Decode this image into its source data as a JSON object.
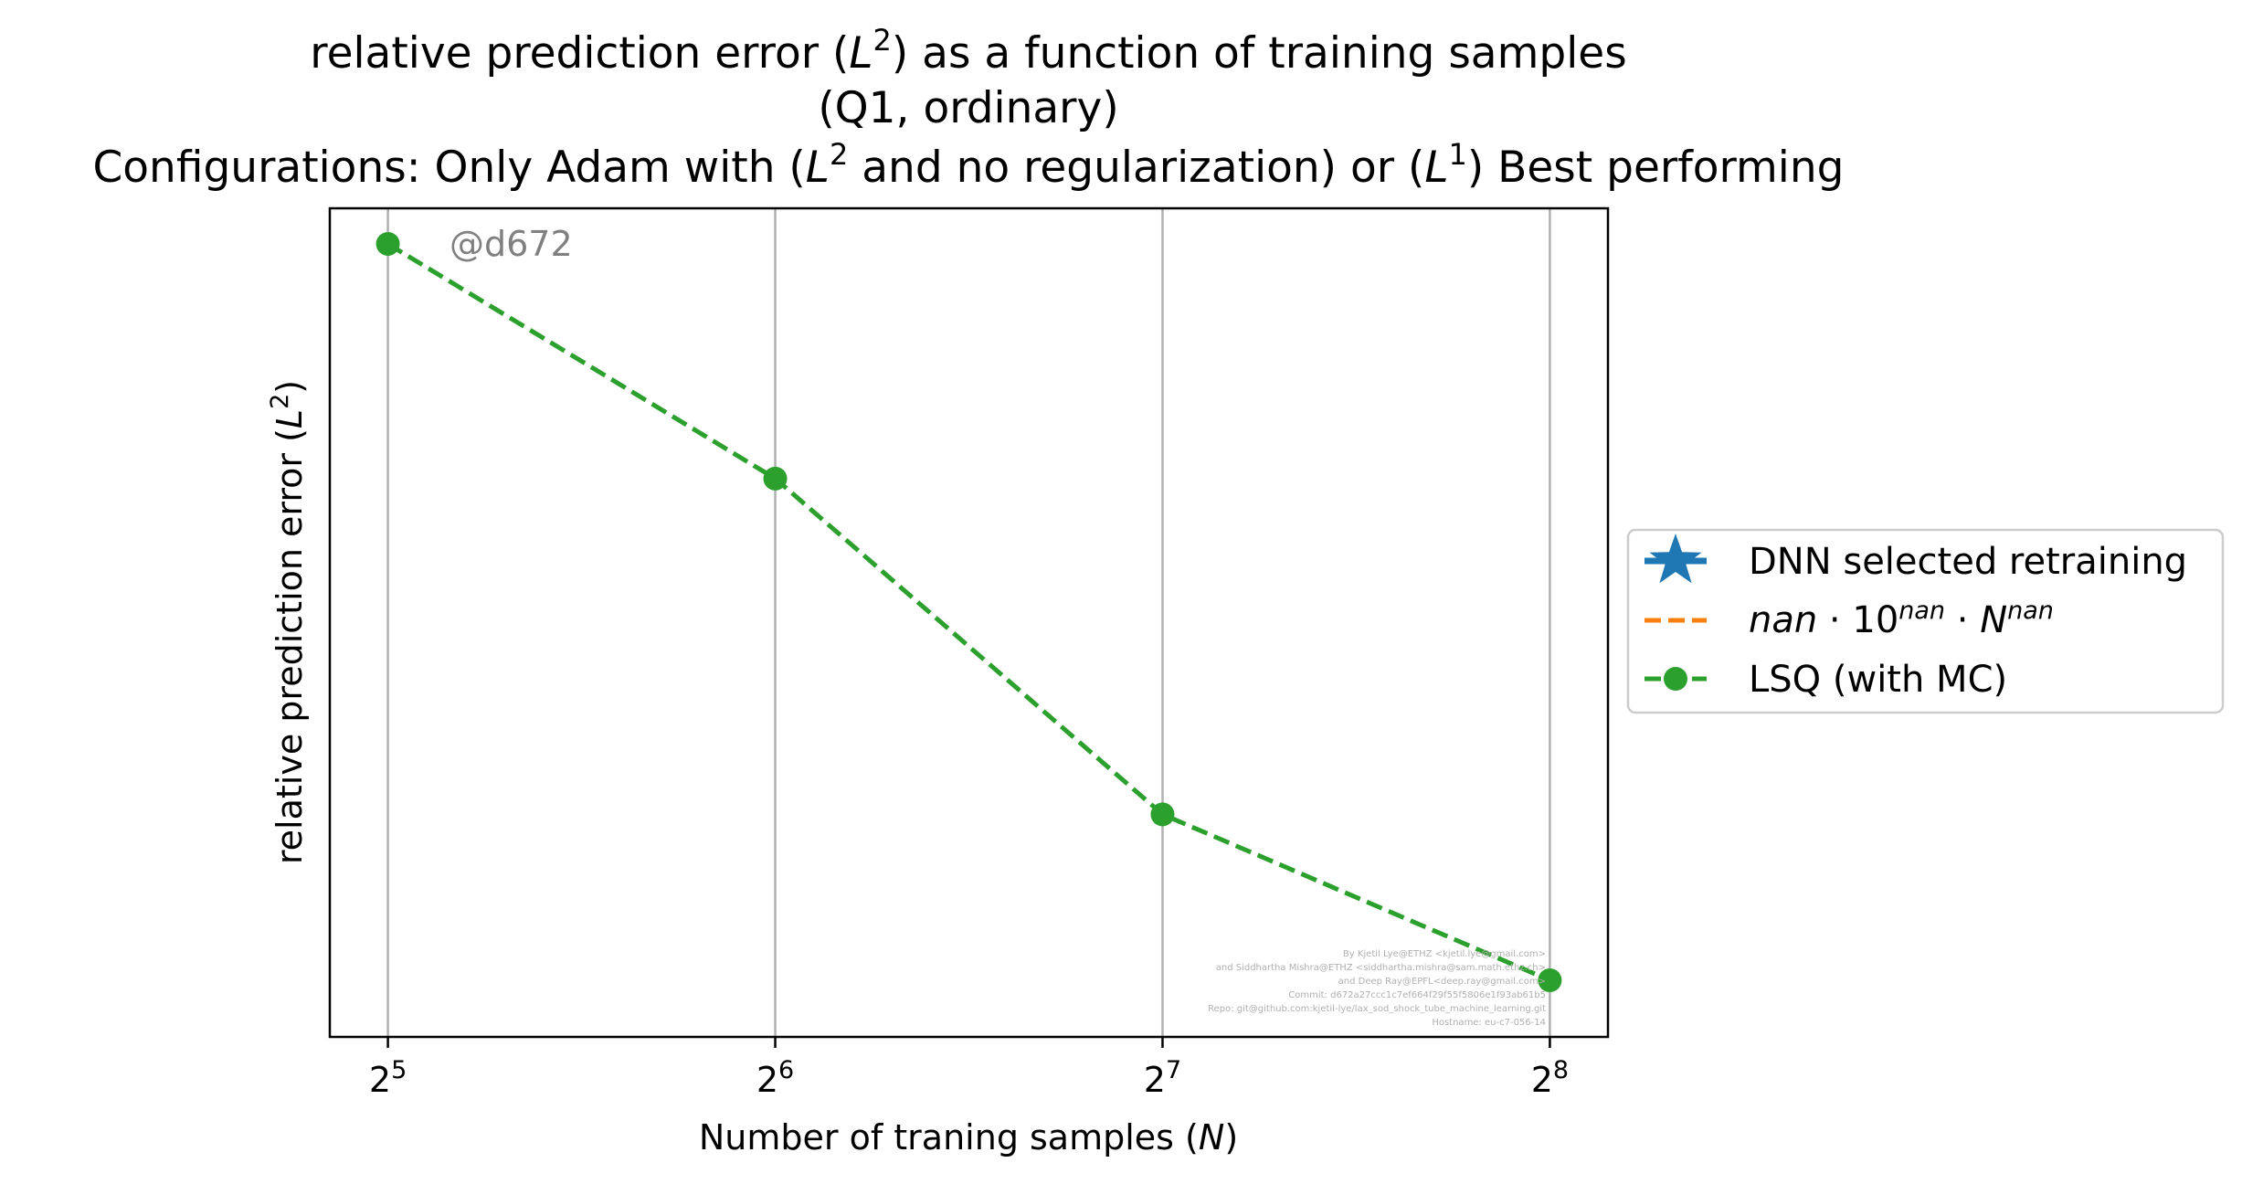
{
  "chart_data": {
    "type": "line",
    "title_lines": [
      "relative prediction error (L²) as a function of training samples",
      "(Q1, ordinary)",
      "Configurations: Only Adam with (L² and no regularization) or (L¹) Best performing"
    ],
    "xlabel": "Number of traning samples (N)",
    "ylabel": "relative prediction error (L²)",
    "x_scale": "log2",
    "x_ticks": [
      {
        "value": 32,
        "base": "2",
        "exp": "5"
      },
      {
        "value": 64,
        "base": "2",
        "exp": "6"
      },
      {
        "value": 128,
        "base": "2",
        "exp": "7"
      },
      {
        "value": 256,
        "base": "2",
        "exp": "8"
      }
    ],
    "grid": "x-vertical",
    "legend_position": "right-outside",
    "legend": [
      {
        "label": "DNN selected retraining",
        "color": "#1f77b4",
        "marker": "star",
        "linestyle": "solid"
      },
      {
        "label": "nan·10nan·Nnan",
        "color": "#ff7f0e",
        "marker": "none",
        "linestyle": "dashed"
      },
      {
        "label": "LSQ (with MC)",
        "color": "#2ca02c",
        "marker": "circle",
        "linestyle": "dashed"
      }
    ],
    "series": [
      {
        "name": "LSQ (with MC)",
        "color": "#2ca02c",
        "x": [
          32,
          64,
          128,
          256
        ],
        "y": [
          0.98,
          0.69,
          0.275,
          0.07
        ]
      }
    ],
    "ylim": [
      0,
      1.024
    ],
    "annotation": "@d672",
    "credit_lines": [
      "By Kjetil Lye@ETHZ <kjetil.lye@gmail.com>",
      "and Siddhartha Mishra@ETHZ <siddhartha.mishra@sam.math.ethz.ch>",
      "and Deep Ray@EPFL<deep.ray@gmail.com>",
      "Commit: d672a27ccc1c7ef664f29f55f5806e1f93ab61b5",
      "Repo: git@github.com:kjetil-lye/lax_sod_shock_tube_machine_learning.git",
      "Hostname: eu-c7-056-14"
    ]
  }
}
